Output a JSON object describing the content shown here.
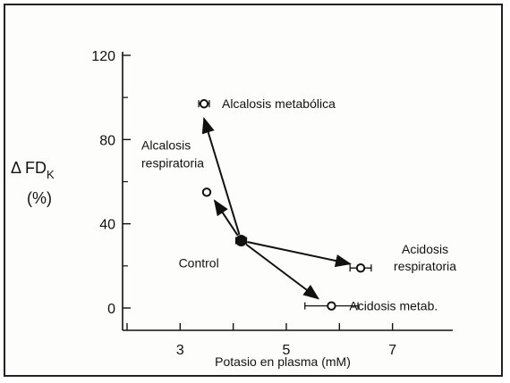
{
  "chart_data": {
    "type": "scatter",
    "title": "",
    "ylabel_main": "Δ FD",
    "ylabel_sub": "K",
    "ylabel_unit": "(%)",
    "xlabel": "Potasio en plasma (mM)",
    "xlim": [
      2,
      8
    ],
    "ylim": [
      0,
      120
    ],
    "xticks": [
      3,
      5,
      7
    ],
    "yticks": [
      0,
      40,
      80,
      120
    ],
    "grid": false,
    "points": [
      {
        "label": "Control",
        "x": 4.15,
        "y": 32,
        "xerr": 0.1,
        "yerr": 2,
        "filled": true
      },
      {
        "label": "Alcalosis metabólica",
        "x": 3.45,
        "y": 97,
        "xerr": 0.1,
        "yerr": 1.5,
        "filled": false
      },
      {
        "label_lines": [
          "Alcalosis",
          "respiratoria"
        ],
        "x": 3.5,
        "y": 55,
        "xerr": 0,
        "yerr": 0,
        "filled": false
      },
      {
        "label_lines": [
          "Acidosis",
          "respiratoria"
        ],
        "x": 6.4,
        "y": 19,
        "xerr": 0.2,
        "yerr": 1.5,
        "filled": false
      },
      {
        "label": "Acidosis metab.",
        "x": 5.85,
        "y": 1,
        "xerr": 0.5,
        "yerr": 1.5,
        "filled": false
      }
    ],
    "arrows": [
      {
        "from": [
          4.15,
          32
        ],
        "to": [
          3.45,
          90
        ]
      },
      {
        "from": [
          4.15,
          32
        ],
        "to": [
          3.65,
          51
        ]
      },
      {
        "from": [
          4.15,
          32
        ],
        "to": [
          6.2,
          21
        ]
      },
      {
        "from": [
          4.15,
          32
        ],
        "to": [
          5.6,
          4.5
        ]
      }
    ]
  }
}
